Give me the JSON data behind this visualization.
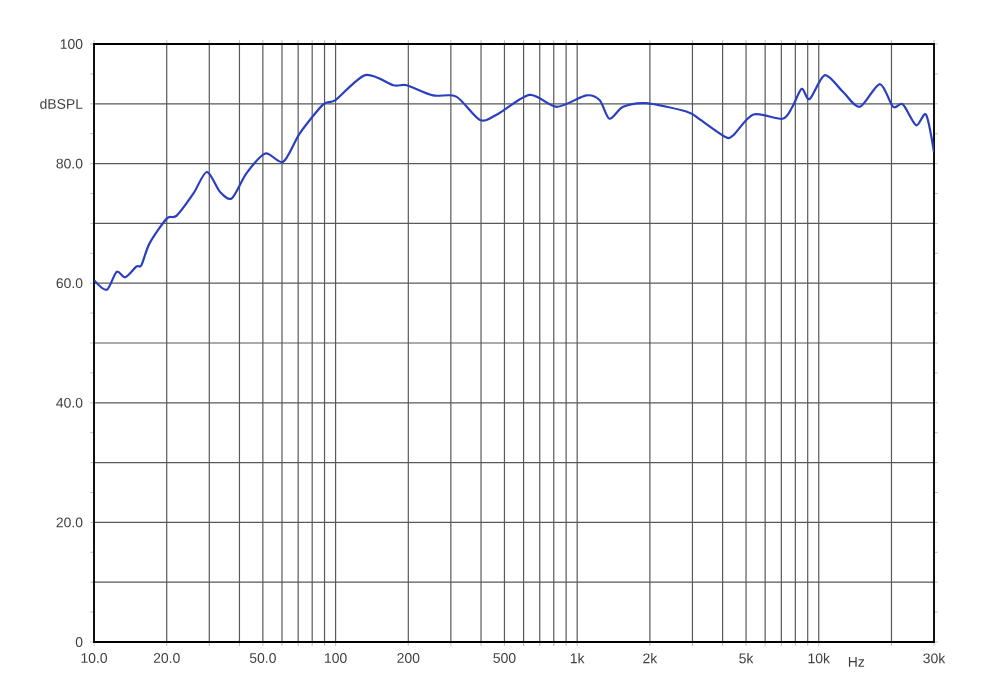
{
  "chart_data": {
    "type": "line",
    "xlabel": "Hz",
    "log": "x",
    "grid": true,
    "marker": "none",
    "line_style": "solid",
    "xlim": [
      10,
      30000
    ],
    "ylim": [
      0,
      100
    ],
    "xticks": [
      {
        "value": 10,
        "label": "10.0"
      },
      {
        "value": 20,
        "label": "20.0"
      },
      {
        "value": 30,
        "label": null
      },
      {
        "value": 40,
        "label": null
      },
      {
        "value": 50,
        "label": "50.0"
      },
      {
        "value": 60,
        "label": null
      },
      {
        "value": 70,
        "label": null
      },
      {
        "value": 80,
        "label": null
      },
      {
        "value": 90,
        "label": null
      },
      {
        "value": 100,
        "label": "100"
      },
      {
        "value": 200,
        "label": "200"
      },
      {
        "value": 300,
        "label": null
      },
      {
        "value": 400,
        "label": null
      },
      {
        "value": 500,
        "label": "500"
      },
      {
        "value": 600,
        "label": null
      },
      {
        "value": 700,
        "label": null
      },
      {
        "value": 800,
        "label": null
      },
      {
        "value": 900,
        "label": null
      },
      {
        "value": 1000,
        "label": "1k"
      },
      {
        "value": 2000,
        "label": "2k"
      },
      {
        "value": 3000,
        "label": null
      },
      {
        "value": 4000,
        "label": null
      },
      {
        "value": 5000,
        "label": "5k"
      },
      {
        "value": 6000,
        "label": null
      },
      {
        "value": 7000,
        "label": null
      },
      {
        "value": 8000,
        "label": null
      },
      {
        "value": 9000,
        "label": null
      },
      {
        "value": 10000,
        "label": "10k"
      },
      {
        "value": 20000,
        "label": null
      },
      {
        "value": 30000,
        "label": "30k"
      }
    ],
    "yticks": [
      0,
      {
        "value": 10,
        "label": null
      },
      {
        "value": 20,
        "label": "20.0"
      },
      {
        "value": 30,
        "label": null
      },
      {
        "value": 40,
        "label": "40.0"
      },
      {
        "value": 50,
        "label": null
      },
      {
        "value": 60,
        "label": "60.0"
      },
      {
        "value": 70,
        "label": null
      },
      {
        "value": 80,
        "label": "80.0"
      },
      {
        "value": 90,
        "label": "dBSPL"
      },
      100
    ],
    "series": [
      {
        "color": "#2a3fbf",
        "x": [
          10,
          11.3,
          12.4,
          13.5,
          15,
          15.7,
          17,
          20,
          22,
          25.8,
          29.3,
          33.2,
          37.2,
          42.8,
          51.2,
          60.7,
          71.2,
          88.9,
          99.8,
          132.8,
          173.7,
          197,
          253,
          316,
          396,
          470,
          636,
          822,
          1090,
          1240,
          1360,
          1550,
          1930,
          2830,
          3240,
          4090,
          4420,
          5360,
          7080,
          7780,
          8500,
          9170,
          10600,
          12600,
          14800,
          17900,
          20300,
          22300,
          25300,
          27800,
          30000
        ],
        "values": [
          60.5,
          58.9,
          61.9,
          61.0,
          62.8,
          63.0,
          66.7,
          70.8,
          71.3,
          75.0,
          78.6,
          75.3,
          74.2,
          78.4,
          81.7,
          80.3,
          85.1,
          89.9,
          90.6,
          94.8,
          93.1,
          93.1,
          91.4,
          91.2,
          87.3,
          88.3,
          91.5,
          89.5,
          91.4,
          90.6,
          87.5,
          89.5,
          90.1,
          88.7,
          87.3,
          84.5,
          84.7,
          88.2,
          87.5,
          89.5,
          92.5,
          90.8,
          94.8,
          92.0,
          89.5,
          93.3,
          89.5,
          89.9,
          86.4,
          88.2,
          81.9
        ]
      }
    ]
  }
}
